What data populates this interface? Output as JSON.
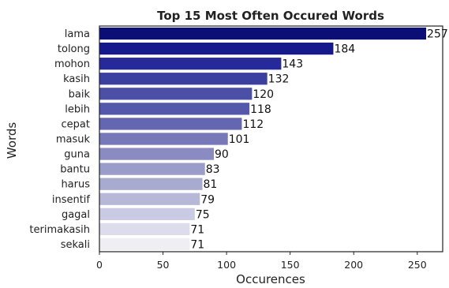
{
  "chart_data": {
    "type": "bar",
    "orientation": "horizontal",
    "title": "Top 15 Most Often Occured Words",
    "xlabel": "Occurences",
    "ylabel": "Words",
    "categories": [
      "lama",
      "tolong",
      "mohon",
      "kasih",
      "baik",
      "lebih",
      "cepat",
      "masuk",
      "guna",
      "bantu",
      "harus",
      "insentif",
      "gagal",
      "terimakasih",
      "sekali"
    ],
    "values": [
      257,
      184,
      143,
      132,
      120,
      118,
      112,
      101,
      90,
      83,
      81,
      79,
      75,
      71,
      71
    ],
    "data_labels": [
      "257",
      "184",
      "143",
      "132",
      "120",
      "118",
      "112",
      "101",
      "90",
      "83",
      "81",
      "79",
      "75",
      "71",
      "71"
    ],
    "xlim": [
      0,
      270
    ],
    "xticks": [
      0,
      50,
      100,
      150,
      200,
      250
    ],
    "xtick_labels": [
      "0",
      "50",
      "100",
      "150",
      "200",
      "250"
    ],
    "colors": [
      "#0b0f75",
      "#15198c",
      "#25299a",
      "#3b3f9f",
      "#4b4fa6",
      "#5458ab",
      "#6466b1",
      "#7678b7",
      "#8a8cc1",
      "#9a9cc9",
      "#a8aad0",
      "#b7b8d8",
      "#c9cae3",
      "#dcdcec",
      "#eeeef3"
    ],
    "grid": false,
    "legend": "none"
  }
}
